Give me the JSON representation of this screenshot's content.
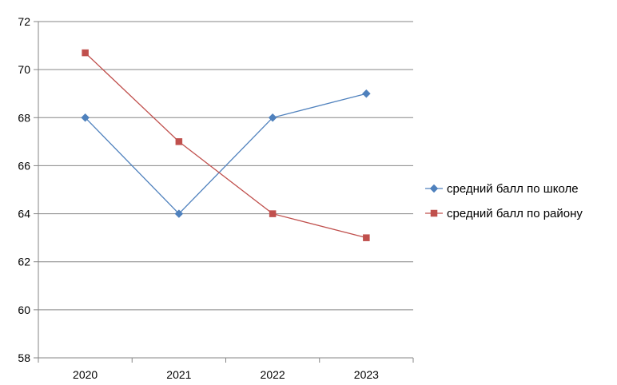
{
  "chart_data": {
    "type": "line",
    "categories": [
      "2020",
      "2021",
      "2022",
      "2023"
    ],
    "ylim": [
      58,
      72
    ],
    "y_ticks": [
      58,
      60,
      62,
      64,
      66,
      68,
      70,
      72
    ],
    "grid": true,
    "legend_position": "right",
    "series": [
      {
        "name": "средний балл по школе",
        "values": [
          68,
          64,
          68,
          69
        ],
        "color": "#4f81bd",
        "marker": "diamond"
      },
      {
        "name": "средний балл по району",
        "values": [
          70.7,
          67,
          64,
          63
        ],
        "color": "#c0504d",
        "marker": "square"
      }
    ]
  }
}
